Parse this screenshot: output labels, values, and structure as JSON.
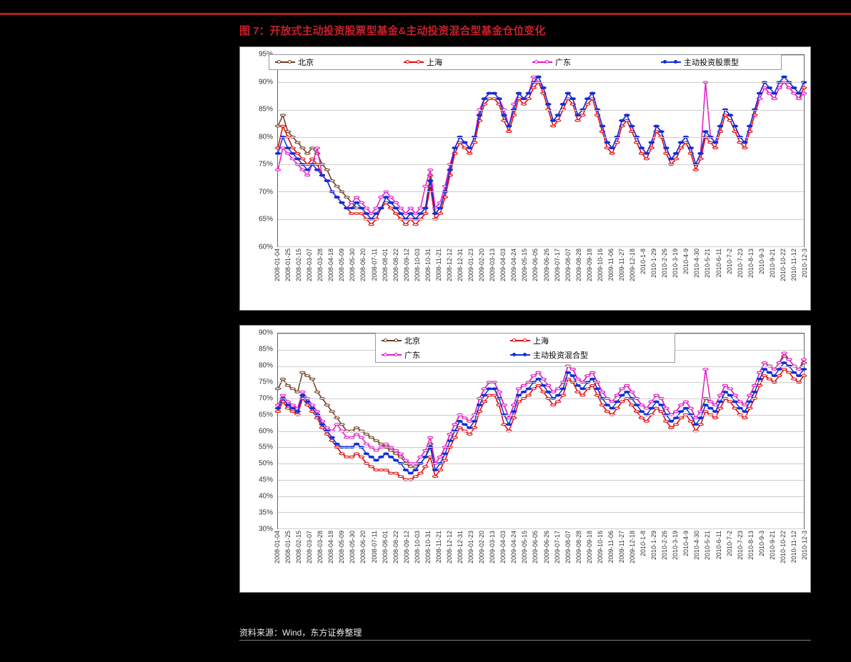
{
  "colors": {
    "page_bg": "#000000",
    "header_bar": "#b01e23",
    "title": "#c8202a",
    "chart_bg": "#ffffff",
    "grid": "#cccccc",
    "axis_text": "#333333",
    "source_text": "#e8e8e8"
  },
  "title": "图 7：开放式主动投资股票型基金&主动投资混合型基金仓位变化",
  "source": "资料来源：Wind，东方证券整理",
  "x_labels": [
    "2008-01-04",
    "2008-01-25",
    "2008-02-15",
    "2008-03-07",
    "2008-03-28",
    "2008-04-18",
    "2008-05-09",
    "2008-05-30",
    "2008-06-20",
    "2008-07-11",
    "2008-08-01",
    "2008-08-22",
    "2008-09-12",
    "2008-10-03",
    "2008-10-31",
    "2008-11-21",
    "2008-12-12",
    "2008-12-31",
    "2009-01-23",
    "2009-02-20",
    "2009-03-13",
    "2009-04-03",
    "2009-04-24",
    "2009-05-15",
    "2009-06-05",
    "2009-06-26",
    "2009-07-17",
    "2009-08-07",
    "2009-08-28",
    "2009-09-18",
    "2009-10-16",
    "2009-11-06",
    "2009-11-27",
    "2009-12-18",
    "2010-1-8",
    "2010-1-29",
    "2010-2-26",
    "2010-3-19",
    "2010-4-9",
    "2010-4-30",
    "2010-5-21",
    "2010-6-11",
    "2010-7-2",
    "2010-7-23",
    "2010-8-13",
    "2010-9-3",
    "2010-9-21",
    "2010-10-22",
    "2010-11-12",
    "2010-12-3"
  ],
  "chart1": {
    "type": "line",
    "ylim": [
      60,
      95
    ],
    "ytick_step": 5,
    "y_format": "%",
    "legend_pos": "top-center-single-row",
    "title_fontsize": 15,
    "label_fontsize": 10,
    "line_width": 1.5,
    "marker_style": "circle",
    "marker_size": 3,
    "background_color": "#ffffff",
    "grid_color": "#cccccc",
    "series": [
      {
        "name": "北京",
        "color": "#6b3a1e",
        "marker_border": "#6b3a1e",
        "marker_fill": "#ffffff",
        "data": [
          82,
          84,
          81,
          80,
          79,
          78,
          77,
          78,
          77,
          75,
          74,
          72,
          71,
          70,
          69,
          68,
          67,
          67,
          66,
          65,
          66,
          67,
          69,
          68,
          67,
          66,
          65,
          66,
          65,
          66,
          67,
          73,
          66,
          67,
          70,
          74,
          78,
          80,
          79,
          78,
          80,
          84,
          87,
          88,
          88,
          87,
          84,
          82,
          85,
          88,
          87,
          88,
          90,
          91,
          89,
          86,
          83,
          84,
          86,
          88,
          87,
          84,
          85,
          87,
          88,
          85,
          82,
          79,
          78,
          80,
          83,
          84,
          82,
          80,
          78,
          77,
          79,
          82,
          81,
          78,
          76,
          77,
          79,
          80,
          78,
          75,
          77,
          81,
          80,
          79,
          82,
          85,
          84,
          82,
          80,
          79,
          82,
          85,
          88,
          90,
          89,
          88,
          90,
          91,
          90,
          89,
          88,
          90
        ]
      },
      {
        "name": "上海",
        "color": "#e50000",
        "marker_border": "#e50000",
        "marker_fill": "#ffffff",
        "data": [
          78,
          82,
          80,
          78,
          77,
          76,
          75,
          76,
          75,
          73,
          72,
          70,
          69,
          68,
          67,
          66,
          66,
          66,
          65,
          64,
          65,
          67,
          68,
          67,
          66,
          65,
          64,
          65,
          64,
          65,
          66,
          71,
          65,
          66,
          69,
          73,
          77,
          79,
          78,
          77,
          79,
          83,
          86,
          87,
          87,
          86,
          83,
          81,
          84,
          87,
          86,
          87,
          89,
          90,
          88,
          85,
          82,
          83,
          85,
          87,
          86,
          83,
          84,
          86,
          87,
          84,
          81,
          78,
          77,
          79,
          82,
          83,
          81,
          79,
          77,
          76,
          78,
          81,
          80,
          77,
          75,
          76,
          78,
          79,
          77,
          74,
          76,
          80,
          79,
          78,
          81,
          84,
          83,
          81,
          79,
          78,
          81,
          84,
          87,
          89,
          88,
          87,
          89,
          90,
          89,
          88,
          87,
          89
        ]
      },
      {
        "name": "广东",
        "color": "#e814c8",
        "marker_border": "#e814c8",
        "marker_fill": "#ffffff",
        "data": [
          74,
          78,
          77,
          76,
          75,
          74,
          73,
          75,
          78,
          73,
          72,
          70,
          69,
          68,
          67,
          68,
          69,
          68,
          67,
          66,
          67,
          69,
          70,
          69,
          68,
          67,
          66,
          67,
          66,
          67,
          71,
          74,
          67,
          68,
          71,
          75,
          78,
          80,
          79,
          78,
          80,
          85,
          87,
          88,
          88,
          87,
          85,
          82,
          86,
          88,
          87,
          88,
          91,
          90,
          89,
          86,
          83,
          84,
          86,
          88,
          87,
          84,
          85,
          87,
          88,
          85,
          82,
          79,
          78,
          80,
          83,
          84,
          82,
          80,
          78,
          77,
          79,
          82,
          81,
          78,
          76,
          77,
          79,
          80,
          78,
          75,
          77,
          90,
          80,
          79,
          82,
          85,
          84,
          82,
          80,
          79,
          82,
          85,
          87,
          89,
          88,
          87,
          89,
          90,
          89,
          88,
          87,
          88
        ]
      },
      {
        "name": "主动投资股票型",
        "color": "#1030d8",
        "marker_border": "#1030d8",
        "marker_fill": "#1030d8",
        "data": [
          77,
          80,
          78,
          77,
          76,
          75,
          74,
          75,
          74,
          73,
          72,
          70,
          69,
          68,
          67,
          67,
          68,
          67,
          66,
          65,
          66,
          67,
          69,
          68,
          67,
          66,
          65,
          66,
          65,
          66,
          67,
          72,
          66,
          67,
          70,
          74,
          78,
          80,
          79,
          78,
          80,
          84,
          87,
          88,
          88,
          87,
          84,
          82,
          85,
          88,
          87,
          88,
          90,
          91,
          89,
          86,
          83,
          84,
          86,
          88,
          87,
          84,
          85,
          87,
          88,
          85,
          82,
          79,
          78,
          80,
          83,
          84,
          82,
          80,
          78,
          77,
          79,
          82,
          81,
          78,
          76,
          77,
          79,
          80,
          78,
          75,
          77,
          81,
          80,
          79,
          82,
          85,
          84,
          82,
          80,
          79,
          82,
          85,
          88,
          90,
          89,
          88,
          90,
          91,
          90,
          89,
          88,
          90
        ]
      }
    ]
  },
  "chart2": {
    "type": "line",
    "ylim": [
      30,
      90
    ],
    "ytick_step": 5,
    "y_format": "%",
    "legend_pos": "top-center-two-col",
    "label_fontsize": 10,
    "line_width": 1.5,
    "marker_style": "circle",
    "marker_size": 3,
    "background_color": "#ffffff",
    "grid_color": "#cccccc",
    "series": [
      {
        "name": "北京",
        "color": "#6b3a1e",
        "marker_border": "#6b3a1e",
        "marker_fill": "#ffffff",
        "data": [
          73,
          76,
          74,
          73,
          72,
          78,
          77,
          76,
          72,
          70,
          68,
          66,
          64,
          62,
          60,
          60,
          61,
          60,
          59,
          58,
          57,
          56,
          55,
          54,
          53,
          52,
          50,
          49,
          49,
          50,
          52,
          56,
          50,
          52,
          55,
          59,
          62,
          65,
          64,
          63,
          65,
          70,
          73,
          75,
          75,
          72,
          68,
          64,
          68,
          73,
          74,
          75,
          77,
          78,
          76,
          74,
          72,
          73,
          75,
          80,
          79,
          76,
          75,
          77,
          78,
          75,
          72,
          70,
          69,
          71,
          73,
          74,
          72,
          70,
          68,
          67,
          69,
          71,
          70,
          67,
          65,
          66,
          68,
          69,
          67,
          64,
          66,
          70,
          69,
          68,
          71,
          74,
          73,
          71,
          69,
          68,
          71,
          74,
          78,
          81,
          80,
          79,
          81,
          83,
          82,
          80,
          79,
          81
        ]
      },
      {
        "name": "上海",
        "color": "#e50000",
        "marker_border": "#e50000",
        "marker_fill": "#ffffff",
        "data": [
          66,
          69,
          67,
          66,
          65,
          70,
          68,
          66,
          64,
          61,
          59,
          57,
          55,
          53,
          52,
          52,
          53,
          52,
          50,
          49,
          48,
          48,
          48,
          47,
          47,
          46,
          45,
          45,
          46,
          47,
          49,
          52,
          46,
          48,
          51,
          55,
          58,
          61,
          60,
          59,
          61,
          66,
          69,
          71,
          71,
          68,
          62,
          60,
          64,
          69,
          70,
          71,
          73,
          74,
          72,
          70,
          68,
          69,
          71,
          76,
          75,
          72,
          71,
          73,
          74,
          71,
          68,
          66,
          65,
          67,
          69,
          70,
          68,
          66,
          64,
          63,
          65,
          67,
          66,
          63,
          61,
          62,
          64,
          65,
          63,
          60,
          62,
          66,
          65,
          64,
          67,
          70,
          69,
          67,
          65,
          64,
          67,
          70,
          74,
          77,
          76,
          75,
          77,
          79,
          78,
          76,
          75,
          77
        ]
      },
      {
        "name": "广东",
        "color": "#e814c8",
        "marker_border": "#e814c8",
        "marker_fill": "#ffffff",
        "data": [
          68,
          71,
          69,
          68,
          67,
          72,
          70,
          68,
          66,
          63,
          61,
          60,
          62,
          60,
          58,
          58,
          59,
          58,
          56,
          55,
          54,
          55,
          56,
          55,
          54,
          53,
          51,
          50,
          50,
          52,
          54,
          58,
          50,
          52,
          55,
          59,
          62,
          65,
          64,
          63,
          65,
          70,
          73,
          75,
          75,
          72,
          68,
          64,
          68,
          73,
          74,
          75,
          77,
          78,
          76,
          74,
          72,
          73,
          75,
          80,
          79,
          76,
          75,
          77,
          78,
          75,
          72,
          70,
          69,
          71,
          73,
          74,
          72,
          70,
          68,
          67,
          69,
          71,
          70,
          67,
          65,
          66,
          68,
          69,
          67,
          64,
          66,
          79,
          69,
          68,
          71,
          74,
          73,
          71,
          69,
          68,
          71,
          74,
          78,
          81,
          80,
          79,
          81,
          84,
          82,
          80,
          79,
          82
        ]
      },
      {
        "name": "主动投资混合型",
        "color": "#1030d8",
        "marker_border": "#1030d8",
        "marker_fill": "#1030d8",
        "data": [
          67,
          70,
          68,
          67,
          66,
          71,
          69,
          67,
          65,
          62,
          60,
          58,
          56,
          55,
          55,
          55,
          56,
          55,
          53,
          52,
          51,
          52,
          53,
          52,
          51,
          50,
          48,
          47,
          48,
          50,
          52,
          55,
          48,
          50,
          53,
          57,
          60,
          63,
          62,
          61,
          63,
          68,
          71,
          73,
          73,
          70,
          65,
          62,
          66,
          71,
          72,
          73,
          75,
          76,
          74,
          72,
          70,
          71,
          73,
          78,
          77,
          74,
          73,
          75,
          76,
          73,
          70,
          68,
          67,
          69,
          71,
          72,
          70,
          68,
          66,
          65,
          67,
          69,
          68,
          65,
          63,
          64,
          66,
          67,
          65,
          62,
          64,
          68,
          67,
          66,
          69,
          72,
          71,
          69,
          67,
          66,
          69,
          72,
          76,
          79,
          78,
          77,
          79,
          81,
          80,
          78,
          77,
          79
        ]
      }
    ]
  }
}
